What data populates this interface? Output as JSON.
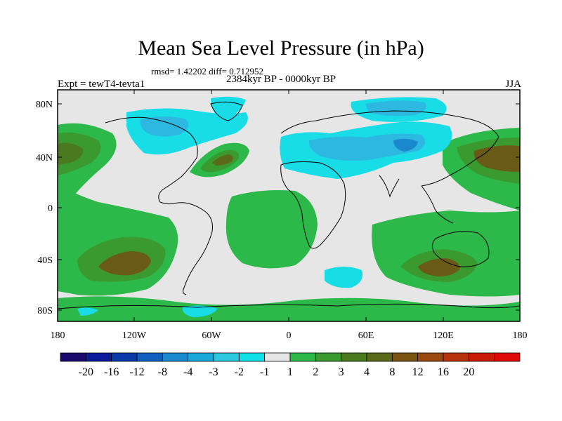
{
  "title": "Mean Sea Level Pressure (in hPa)",
  "stats": "rmsd= 1.42202 diff= 0.712952",
  "experiment": "Expt = tewT4-tevta1",
  "period": "2384kyr BP - 0000kyr BP",
  "season": "JJA",
  "lat_labels": [
    "80N",
    "40N",
    "0",
    "40S",
    "80S"
  ],
  "lon_labels": [
    "180",
    "120W",
    "60W",
    "0",
    "60E",
    "120E",
    "180"
  ],
  "colorbar": {
    "colors": [
      "#1a0a6e",
      "#0b1a9a",
      "#0a3aaa",
      "#1060c0",
      "#1a88cc",
      "#1aa8d8",
      "#2cc8e0",
      "#10e0e8",
      "#e6e6e6",
      "#2db84a",
      "#3a9a30",
      "#4a7a20",
      "#5a6a18",
      "#7a5410",
      "#9a4a10",
      "#b8320c",
      "#cc1a08",
      "#e00a0a"
    ],
    "labels": [
      "-20",
      "-16",
      "-12",
      "-8",
      "-4",
      "-3",
      "-2",
      "-1",
      "1",
      "2",
      "3",
      "4",
      "8",
      "12",
      "16",
      "20"
    ]
  },
  "colors": {
    "neutral": "#e6e6e6",
    "pos1": "#2db84a",
    "pos2": "#3a9a30",
    "pos3": "#4a7a20",
    "pos4": "#6a5a18",
    "neg1": "#18dce6",
    "neg2": "#2cb8e0",
    "neg3": "#1a88cc"
  }
}
